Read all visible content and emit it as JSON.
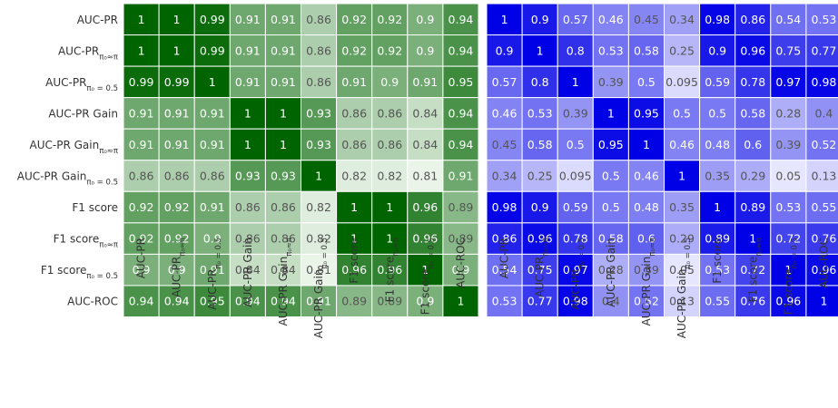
{
  "chart_data": [
    {
      "type": "heatmap",
      "colormap": "green",
      "labels": [
        {
          "base": "AUC-PR",
          "sub": ""
        },
        {
          "base": "AUC-PR",
          "sub": "π₀≈π"
        },
        {
          "base": "AUC-PR",
          "sub": "π₀ = 0.5"
        },
        {
          "base": "AUC-PR Gain",
          "sub": ""
        },
        {
          "base": "AUC-PR Gain",
          "sub": "π₀≈π"
        },
        {
          "base": "AUC-PR Gain",
          "sub": "π₀ = 0.5"
        },
        {
          "base": "F1 score",
          "sub": ""
        },
        {
          "base": "F1 score",
          "sub": "π₀≈π"
        },
        {
          "base": "F1 score",
          "sub": "π₀ = 0.5"
        },
        {
          "base": "AUC-ROC",
          "sub": ""
        }
      ],
      "values": [
        [
          1,
          1,
          0.99,
          0.91,
          0.91,
          0.86,
          0.92,
          0.92,
          0.9,
          0.94
        ],
        [
          1,
          1,
          0.99,
          0.91,
          0.91,
          0.86,
          0.92,
          0.92,
          0.9,
          0.94
        ],
        [
          0.99,
          0.99,
          1,
          0.91,
          0.91,
          0.86,
          0.91,
          0.9,
          0.91,
          0.95
        ],
        [
          0.91,
          0.91,
          0.91,
          1,
          1,
          0.93,
          0.86,
          0.86,
          0.84,
          0.94
        ],
        [
          0.91,
          0.91,
          0.91,
          1,
          1,
          0.93,
          0.86,
          0.86,
          0.84,
          0.94
        ],
        [
          0.86,
          0.86,
          0.86,
          0.93,
          0.93,
          1,
          0.82,
          0.82,
          0.81,
          0.91
        ],
        [
          0.92,
          0.92,
          0.91,
          0.86,
          0.86,
          0.82,
          1,
          1,
          0.96,
          0.89
        ],
        [
          0.92,
          0.92,
          0.9,
          0.86,
          0.86,
          0.82,
          1,
          1,
          0.96,
          0.89
        ],
        [
          0.9,
          0.9,
          0.91,
          0.84,
          0.84,
          0.81,
          0.96,
          0.96,
          1,
          0.9
        ],
        [
          0.94,
          0.94,
          0.95,
          0.94,
          0.94,
          0.91,
          0.89,
          0.89,
          0.9,
          1
        ]
      ],
      "color_scale": [
        0.8,
        1.0
      ]
    },
    {
      "type": "heatmap",
      "colormap": "blue",
      "labels": [
        {
          "base": "AUC-PR",
          "sub": ""
        },
        {
          "base": "AUC-PR",
          "sub": "π₀≈π"
        },
        {
          "base": "AUC-PR",
          "sub": "π₀ = 0.5"
        },
        {
          "base": "AUC-PR Gain",
          "sub": ""
        },
        {
          "base": "AUC-PR Gain",
          "sub": "π₀≈π"
        },
        {
          "base": "AUC-PR Gain",
          "sub": "π₀ = 0.5"
        },
        {
          "base": "F1 score",
          "sub": ""
        },
        {
          "base": "F1 score",
          "sub": "π₀≈π"
        },
        {
          "base": "F1 score",
          "sub": "π₀ = 0.5"
        },
        {
          "base": "AUC-ROC",
          "sub": ""
        }
      ],
      "values": [
        [
          1,
          0.9,
          0.57,
          0.46,
          0.45,
          0.34,
          0.98,
          0.86,
          0.54,
          0.53
        ],
        [
          0.9,
          1,
          0.8,
          0.53,
          0.58,
          0.25,
          0.9,
          0.96,
          0.75,
          0.77
        ],
        [
          0.57,
          0.8,
          1,
          0.39,
          0.5,
          0.095,
          0.59,
          0.78,
          0.97,
          0.98
        ],
        [
          0.46,
          0.53,
          0.39,
          1,
          0.95,
          0.5,
          0.5,
          0.58,
          0.28,
          0.4
        ],
        [
          0.45,
          0.58,
          0.5,
          0.95,
          1,
          0.46,
          0.48,
          0.6,
          0.39,
          0.52
        ],
        [
          0.34,
          0.25,
          0.095,
          0.5,
          0.46,
          1,
          0.35,
          0.29,
          0.05,
          0.13
        ],
        [
          0.98,
          0.9,
          0.59,
          0.5,
          0.48,
          0.35,
          1,
          0.89,
          0.53,
          0.55
        ],
        [
          0.86,
          0.96,
          0.78,
          0.58,
          0.6,
          0.29,
          0.89,
          1,
          0.72,
          0.76
        ],
        [
          0.54,
          0.75,
          0.97,
          0.28,
          0.39,
          0.05,
          0.53,
          0.72,
          1,
          0.96
        ],
        [
          0.53,
          0.77,
          0.98,
          0.4,
          0.52,
          0.13,
          0.55,
          0.76,
          0.96,
          1
        ]
      ],
      "color_scale": [
        0.0,
        1.0
      ]
    }
  ],
  "colors": {
    "green_low": "#f7fcf5",
    "green_high": "#006400",
    "blue_low": "#f2f2ff",
    "blue_high": "#0000e6",
    "cell_border": "#ffffff"
  }
}
